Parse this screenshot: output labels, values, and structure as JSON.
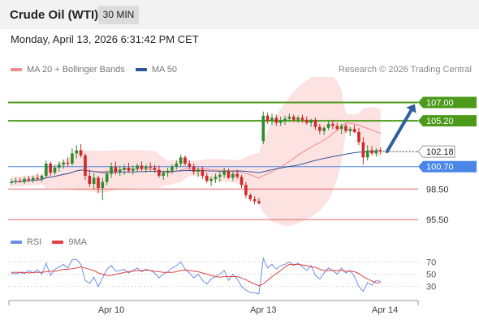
{
  "header": {
    "title": "Crude Oil (WTI)",
    "timeframe": "30 MIN"
  },
  "datetime": "Monday, April 13, 2026 6:31:42 PM CET",
  "copyright": "Research © 2026 Trading Central",
  "colors": {
    "ma20": "#f08c8c",
    "ma50": "#2f5597",
    "green": "#4c9a1a",
    "blue_level": "#4a86e8",
    "red_level": "#e06060",
    "rsi": "#6d8ee8",
    "rsi_ma": "#e04040",
    "arrow": "#2f5fa0",
    "candle_up": "#2e8b2e",
    "candle_down": "#cc2a2a",
    "band": "#fde2e2"
  },
  "chart_data": [
    {
      "type": "candlestick",
      "title": "Crude Oil (WTI)",
      "timeframe": "30 MIN",
      "ylim": [
        94.0,
        109.5
      ],
      "x_ticks": [
        "Apr 10",
        "Apr 13",
        "Apr 14"
      ],
      "legend": [
        "MA 20 + Bollinger Bands",
        "MA 50"
      ],
      "legend_position": "top-left",
      "last_price": 102.18,
      "levels": [
        {
          "value": 107.0,
          "label": "107.00",
          "kind": "resistance-target"
        },
        {
          "value": 105.2,
          "label": "105.20",
          "kind": "resistance-target"
        },
        {
          "value": 100.7,
          "label": "100.70",
          "kind": "pivot"
        },
        {
          "value": 98.5,
          "label": "98.50",
          "kind": "support"
        },
        {
          "value": 95.5,
          "label": "95.50",
          "kind": "support"
        }
      ],
      "candles": [
        [
          99.1,
          99.5,
          98.9,
          99.2
        ],
        [
          99.2,
          99.6,
          99.0,
          99.3
        ],
        [
          99.3,
          99.6,
          99.1,
          99.2
        ],
        [
          99.2,
          99.7,
          99.0,
          99.5
        ],
        [
          99.5,
          99.8,
          99.2,
          99.4
        ],
        [
          99.4,
          99.8,
          99.1,
          99.6
        ],
        [
          99.6,
          100.0,
          99.3,
          99.5
        ],
        [
          99.5,
          99.9,
          99.2,
          99.8
        ],
        [
          99.8,
          101.3,
          99.6,
          101.0
        ],
        [
          101.0,
          101.2,
          99.8,
          100.1
        ],
        [
          100.1,
          100.9,
          99.9,
          100.6
        ],
        [
          100.6,
          101.2,
          100.2,
          100.9
        ],
        [
          100.9,
          101.4,
          100.5,
          101.1
        ],
        [
          101.1,
          101.6,
          100.7,
          101.0
        ],
        [
          101.0,
          102.5,
          100.8,
          102.0
        ],
        [
          102.0,
          102.8,
          101.5,
          102.3
        ],
        [
          102.3,
          102.9,
          101.6,
          101.8
        ],
        [
          101.8,
          102.0,
          99.4,
          99.8
        ],
        [
          99.8,
          100.4,
          98.7,
          99.0
        ],
        [
          99.0,
          100.1,
          98.5,
          99.6
        ],
        [
          99.6,
          99.8,
          98.1,
          98.6
        ],
        [
          98.6,
          99.6,
          97.4,
          99.2
        ],
        [
          99.2,
          100.3,
          98.9,
          100.0
        ],
        [
          100.0,
          101.1,
          99.6,
          100.7
        ],
        [
          100.7,
          101.2,
          99.9,
          100.2
        ],
        [
          100.2,
          100.8,
          99.8,
          100.4
        ],
        [
          100.4,
          100.9,
          99.9,
          100.6
        ],
        [
          100.6,
          101.1,
          100.1,
          100.3
        ],
        [
          100.3,
          100.8,
          99.9,
          100.5
        ],
        [
          100.5,
          101.0,
          100.2,
          100.8
        ],
        [
          100.8,
          101.2,
          100.3,
          100.5
        ],
        [
          100.5,
          100.9,
          100.1,
          100.7
        ],
        [
          100.7,
          101.1,
          100.3,
          100.6
        ],
        [
          100.6,
          100.9,
          100.1,
          100.4
        ],
        [
          100.4,
          100.8,
          99.6,
          99.8
        ],
        [
          99.8,
          100.3,
          99.4,
          100.1
        ],
        [
          100.1,
          100.6,
          99.7,
          100.3
        ],
        [
          100.3,
          100.9,
          100.0,
          100.7
        ],
        [
          100.7,
          101.3,
          100.4,
          101.0
        ],
        [
          101.0,
          101.9,
          100.7,
          101.6
        ],
        [
          101.6,
          101.8,
          100.8,
          101.0
        ],
        [
          101.0,
          101.3,
          100.4,
          100.7
        ],
        [
          100.7,
          101.0,
          99.9,
          100.2
        ],
        [
          100.2,
          100.6,
          99.7,
          100.4
        ],
        [
          100.4,
          100.7,
          99.5,
          99.8
        ],
        [
          99.8,
          100.1,
          99.1,
          99.3
        ],
        [
          99.3,
          99.7,
          98.8,
          99.5
        ],
        [
          99.5,
          100.0,
          99.1,
          99.7
        ],
        [
          99.7,
          100.2,
          99.2,
          99.9
        ],
        [
          99.9,
          100.6,
          99.6,
          100.3
        ],
        [
          100.3,
          100.5,
          99.5,
          99.6
        ],
        [
          99.6,
          100.3,
          99.3,
          100.0
        ],
        [
          100.0,
          100.4,
          99.5,
          99.7
        ],
        [
          99.7,
          99.9,
          98.6,
          98.9
        ],
        [
          98.9,
          99.2,
          97.6,
          97.9
        ],
        [
          97.9,
          98.1,
          97.3,
          97.5
        ],
        [
          97.5,
          97.8,
          97.0,
          97.3
        ],
        [
          97.3,
          97.6,
          97.0,
          97.1
        ],
        [
          103.2,
          106.1,
          102.9,
          105.7
        ],
        [
          105.7,
          106.0,
          104.9,
          105.2
        ],
        [
          105.2,
          105.9,
          104.8,
          105.5
        ],
        [
          105.5,
          105.8,
          104.7,
          105.0
        ],
        [
          105.0,
          105.6,
          104.7,
          105.2
        ],
        [
          105.2,
          105.7,
          104.8,
          105.4
        ],
        [
          105.4,
          105.9,
          105.1,
          105.6
        ],
        [
          105.6,
          105.8,
          105.1,
          105.3
        ],
        [
          105.3,
          105.7,
          105.0,
          105.5
        ],
        [
          105.5,
          105.8,
          105.0,
          105.3
        ],
        [
          105.3,
          105.6,
          104.8,
          105.0
        ],
        [
          105.0,
          105.4,
          104.6,
          105.3
        ],
        [
          105.3,
          105.5,
          104.3,
          104.6
        ],
        [
          104.6,
          104.9,
          103.9,
          104.2
        ],
        [
          104.2,
          104.7,
          103.8,
          104.5
        ],
        [
          104.5,
          105.2,
          104.3,
          104.9
        ],
        [
          104.9,
          105.3,
          104.4,
          104.7
        ],
        [
          104.7,
          105.0,
          104.2,
          104.4
        ],
        [
          104.4,
          104.9,
          103.9,
          104.7
        ],
        [
          104.7,
          104.9,
          104.0,
          104.2
        ],
        [
          104.2,
          104.6,
          103.7,
          104.4
        ],
        [
          104.4,
          104.8,
          104.0,
          104.1
        ],
        [
          104.1,
          104.5,
          102.8,
          103.1
        ],
        [
          103.1,
          103.6,
          100.9,
          101.6
        ],
        [
          101.6,
          102.8,
          101.3,
          102.3
        ],
        [
          102.3,
          102.7,
          101.8,
          102.0
        ],
        [
          102.0,
          102.5,
          101.7,
          102.3
        ],
        [
          102.3,
          102.6,
          101.9,
          102.18
        ]
      ],
      "projection": {
        "from": 102.18,
        "to": 107.0,
        "direction": "up"
      }
    },
    {
      "type": "line",
      "title": "",
      "legend": [
        "RSI",
        "9MA"
      ],
      "legend_position": "top-left",
      "y_ticks": [
        70,
        50,
        30
      ],
      "ylim": [
        15,
        85
      ],
      "rsi": [
        52,
        50,
        53,
        51,
        56,
        52,
        57,
        50,
        68,
        48,
        58,
        62,
        66,
        60,
        74,
        74,
        66,
        40,
        35,
        45,
        30,
        44,
        58,
        64,
        55,
        56,
        58,
        52,
        56,
        60,
        54,
        58,
        56,
        52,
        44,
        50,
        54,
        60,
        64,
        70,
        58,
        52,
        44,
        50,
        40,
        34,
        42,
        46,
        50,
        56,
        40,
        50,
        42,
        30,
        24,
        20,
        20,
        18,
        76,
        60,
        66,
        58,
        64,
        66,
        70,
        64,
        68,
        62,
        56,
        64,
        48,
        42,
        52,
        60,
        56,
        50,
        60,
        52,
        56,
        46,
        30,
        22,
        36,
        32,
        40,
        38
      ],
      "rsi_ma": [
        53,
        53,
        53,
        53,
        52,
        53,
        53,
        53,
        54,
        55,
        55,
        56,
        58,
        58,
        59,
        60,
        62,
        60,
        58,
        56,
        52,
        50,
        48,
        48,
        50,
        51,
        53,
        54,
        55,
        56,
        56,
        57,
        56,
        55,
        54,
        53,
        53,
        53,
        54,
        56,
        57,
        56,
        55,
        54,
        52,
        50,
        48,
        46,
        45,
        46,
        46,
        46,
        46,
        44,
        41,
        37,
        34,
        31,
        34,
        40,
        46,
        51,
        56,
        62,
        66,
        66,
        66,
        65,
        64,
        62,
        61,
        58,
        56,
        56,
        56,
        56,
        56,
        55,
        55,
        54,
        51,
        46,
        42,
        39,
        36,
        36
      ]
    }
  ]
}
